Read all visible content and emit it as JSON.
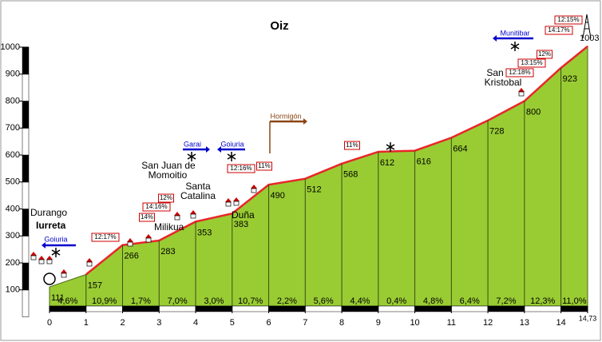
{
  "chart_data": {
    "type": "area",
    "title": "Oiz",
    "x": [
      0,
      1,
      2,
      3,
      4,
      5,
      6,
      7,
      8,
      9,
      10,
      11,
      12,
      13,
      14,
      14.73
    ],
    "values": [
      111,
      157,
      266,
      283,
      353,
      383,
      490,
      512,
      568,
      612,
      616,
      664,
      728,
      800,
      923,
      1003
    ],
    "color": "#99cc33",
    "line_color": "#e8262a",
    "gradients": [
      "4,6%",
      "10,9%",
      "1,7%",
      "7,0%",
      "3,0%",
      "10,7%",
      "2,2%",
      "5,6%",
      "4,4%",
      "0,4%",
      "4,8%",
      "6,4%",
      "7,2%",
      "12,3%",
      "11,0%"
    ],
    "xlim": [
      0,
      14.73
    ],
    "xticks": [
      0,
      1,
      2,
      3,
      4,
      5,
      6,
      7,
      8,
      9,
      10,
      11,
      12,
      13,
      14,
      {
        "value": 14.73,
        "label": "14,73"
      }
    ],
    "ylim": [
      40,
      1000
    ],
    "yticks": [
      100,
      200,
      300,
      400,
      500,
      600,
      700,
      800,
      900,
      1000
    ],
    "places": [
      "Durango",
      "Iurreta",
      "Milikua",
      "San Juan de",
      "Momoitio",
      "Santa",
      "Catalina",
      "Duña",
      "San",
      "Kristobal"
    ],
    "directions": [
      "Goiuria",
      "Garai",
      "Goiuria",
      "Hormigón",
      "Munitibar"
    ],
    "steep": [
      "12:17%",
      "14%",
      "14:16%",
      "12%",
      "12:16%",
      "11%",
      "11%",
      "12:18%",
      "13:15%",
      "12%",
      "14:17%",
      "12:15%"
    ]
  }
}
